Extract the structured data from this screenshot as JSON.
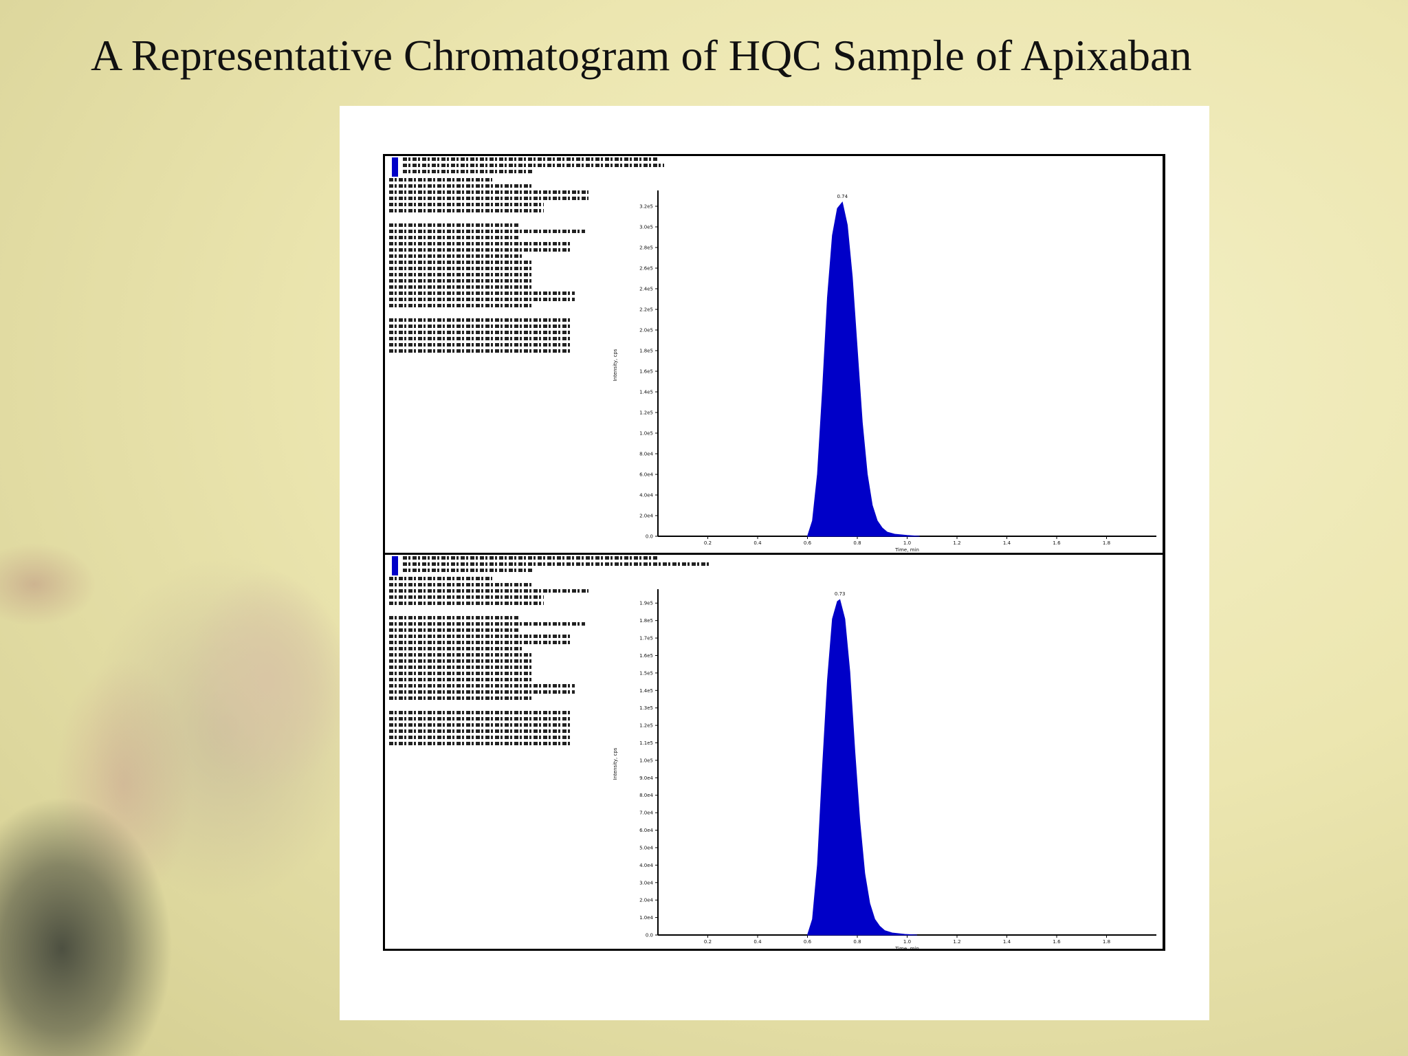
{
  "slide": {
    "title": "A Representative Chromatogram of HQC Sample of Apixaban"
  },
  "colors": {
    "peak": "#0000c8",
    "frame": "#000000",
    "panel_background": "#ffffff",
    "slide_background": "#ece6b0"
  },
  "chart_data": [
    {
      "type": "area",
      "description_key": "top-panel",
      "peak_label": "0.74",
      "peak_x": 0.74,
      "x_ticks": [
        "0.2",
        "0.4",
        "0.6",
        "0.8",
        "1.0",
        "1.2",
        "1.4",
        "1.6",
        "1.8"
      ],
      "xlim": [
        0.0,
        2.0
      ],
      "grid": false,
      "xlabel": "Time, min",
      "ylabel": "Intensity, cps",
      "y_ticks": [
        "0.0",
        "2.0e4",
        "4.0e4",
        "6.0e4",
        "8.0e4",
        "1.0e5",
        "1.2e5",
        "1.4e5",
        "1.6e5",
        "1.8e5",
        "2.0e5",
        "2.2e5",
        "2.4e5",
        "2.6e5",
        "2.8e5",
        "3.0e5",
        "3.2e5"
      ],
      "ylim": [
        0,
        330000
      ],
      "x": [
        0.6,
        0.62,
        0.64,
        0.66,
        0.68,
        0.7,
        0.72,
        0.74,
        0.76,
        0.78,
        0.8,
        0.82,
        0.84,
        0.86,
        0.88,
        0.9,
        0.92,
        0.95,
        1.0,
        1.05
      ],
      "y": [
        0,
        15000,
        60000,
        140000,
        230000,
        290000,
        316000,
        322000,
        300000,
        250000,
        180000,
        110000,
        60000,
        30000,
        15000,
        8000,
        4000,
        2000,
        800,
        0
      ]
    },
    {
      "type": "area",
      "description_key": "bottom-panel",
      "peak_label": "0.73",
      "peak_x": 0.73,
      "x_ticks": [
        "0.2",
        "0.4",
        "0.6",
        "0.8",
        "1.0",
        "1.2",
        "1.4",
        "1.6",
        "1.8"
      ],
      "xlim": [
        0.0,
        2.0
      ],
      "grid": false,
      "xlabel": "Time, min",
      "ylabel": "Intensity, cps",
      "y_ticks": [
        "0.0",
        "1.0e4",
        "2.0e4",
        "3.0e4",
        "4.0e4",
        "5.0e4",
        "6.0e4",
        "7.0e4",
        "8.0e4",
        "9.0e4",
        "1.0e5",
        "1.1e5",
        "1.2e5",
        "1.3e5",
        "1.4e5",
        "1.5e5",
        "1.6e5",
        "1.7e5",
        "1.8e5",
        "1.9e5"
      ],
      "ylim": [
        0,
        195000
      ],
      "x": [
        0.6,
        0.62,
        0.64,
        0.66,
        0.68,
        0.7,
        0.72,
        0.73,
        0.75,
        0.77,
        0.79,
        0.81,
        0.83,
        0.85,
        0.87,
        0.89,
        0.91,
        0.94,
        0.99,
        1.04
      ],
      "y": [
        0,
        9000,
        40000,
        95000,
        145000,
        180000,
        190000,
        191000,
        180000,
        150000,
        105000,
        65000,
        35000,
        18000,
        9000,
        5000,
        2500,
        1200,
        400,
        0
      ]
    }
  ]
}
